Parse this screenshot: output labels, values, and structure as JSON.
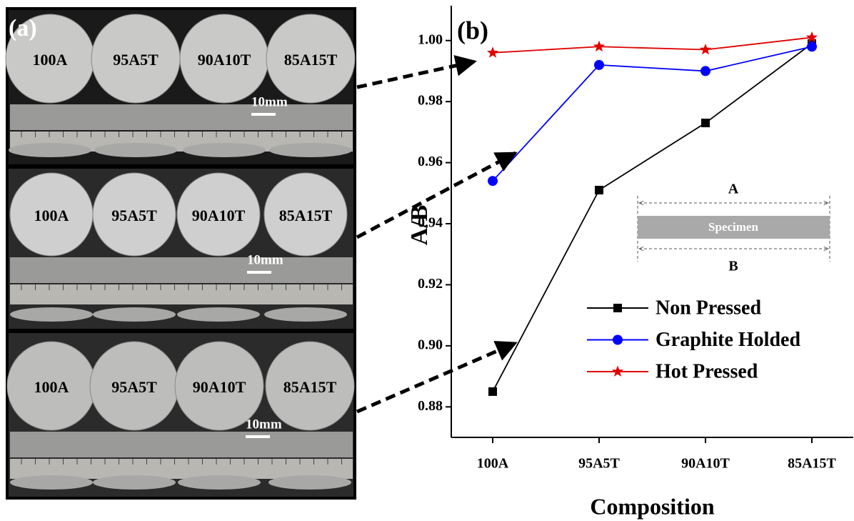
{
  "panel_a": {
    "label": "(a)",
    "rows": [
      {
        "samples": [
          "100A",
          "95A5T",
          "90A10T",
          "85A15T"
        ],
        "scale": "10mm"
      },
      {
        "samples": [
          "100A",
          "95A5T",
          "90A10T",
          "85A15T"
        ],
        "scale": "10mm"
      },
      {
        "samples": [
          "100A",
          "95A5T",
          "90A10T",
          "85A15T"
        ],
        "scale": "10mm"
      }
    ]
  },
  "chart_data": {
    "type": "line",
    "label": "(b)",
    "x_label": "Composition",
    "y_label": "A/B",
    "categories": [
      "100A",
      "95A5T",
      "90A10T",
      "85A15T"
    ],
    "series": [
      {
        "name": "Non Pressed",
        "color": "#000000",
        "marker": "square",
        "values": [
          0.885,
          0.951,
          0.973,
          0.999
        ]
      },
      {
        "name": "Graphite Holded",
        "color": "#0000ff",
        "marker": "circle",
        "values": [
          0.954,
          0.992,
          0.99,
          0.998
        ]
      },
      {
        "name": "Hot Pressed",
        "color": "#e00000",
        "marker": "star",
        "values": [
          0.996,
          0.998,
          0.997,
          1.001
        ]
      }
    ],
    "ylim": [
      0.87,
      1.01
    ],
    "yticks": [
      0.88,
      {
        "value": 0.9,
        "label": "0.90"
      },
      0.92,
      0.94,
      0.96,
      0.98,
      {
        "value": 1.0,
        "label": "1.00"
      }
    ],
    "legend": "lower right",
    "inset": {
      "top": "A",
      "specimen": "Specimen",
      "bottom": "B"
    }
  }
}
